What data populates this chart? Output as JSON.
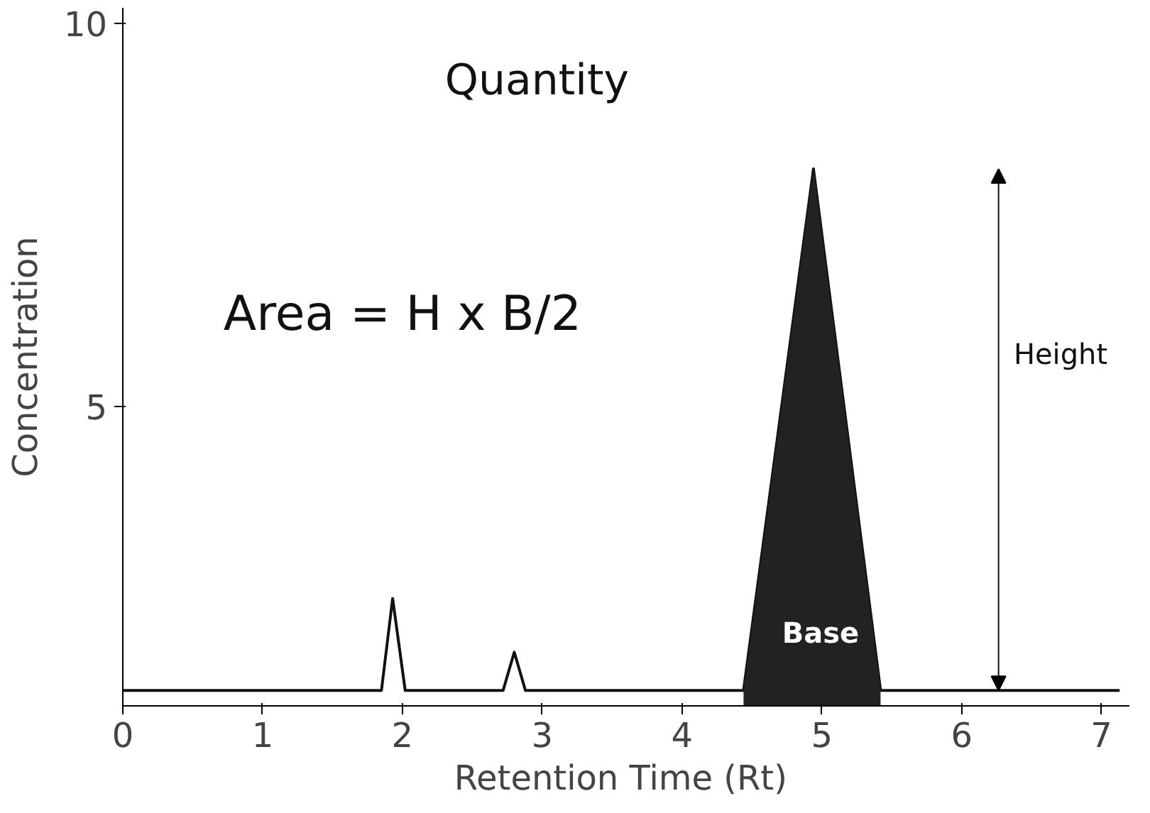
{
  "chart_data": {
    "type": "line",
    "xlabel": "Retention Time  (Rt)",
    "ylabel": "Concentration",
    "xlim": [
      0,
      7.2
    ],
    "ylim": [
      1.1,
      10.2
    ],
    "xticks": [
      0,
      1,
      2,
      3,
      4,
      5,
      6,
      7
    ],
    "yticks": [
      5,
      10
    ],
    "grid": false,
    "series": [
      {
        "color": "#111111",
        "x": [
          0,
          1.85,
          1.93,
          2.02,
          2.72,
          2.8,
          2.88,
          4.44,
          4.94,
          5.42,
          7.13
        ],
        "values": [
          1.3,
          1.3,
          2.5,
          1.3,
          1.3,
          1.8,
          1.3,
          1.3,
          8.1,
          1.3,
          1.3
        ]
      },
      {
        "type": "area",
        "color": "#222222",
        "x": [
          4.44,
          4.94,
          5.42
        ],
        "values": [
          1.3,
          8.1,
          1.3
        ]
      }
    ],
    "annotations": [
      "Quantity",
      "Area = H x B/2",
      "Height",
      "Base"
    ]
  }
}
